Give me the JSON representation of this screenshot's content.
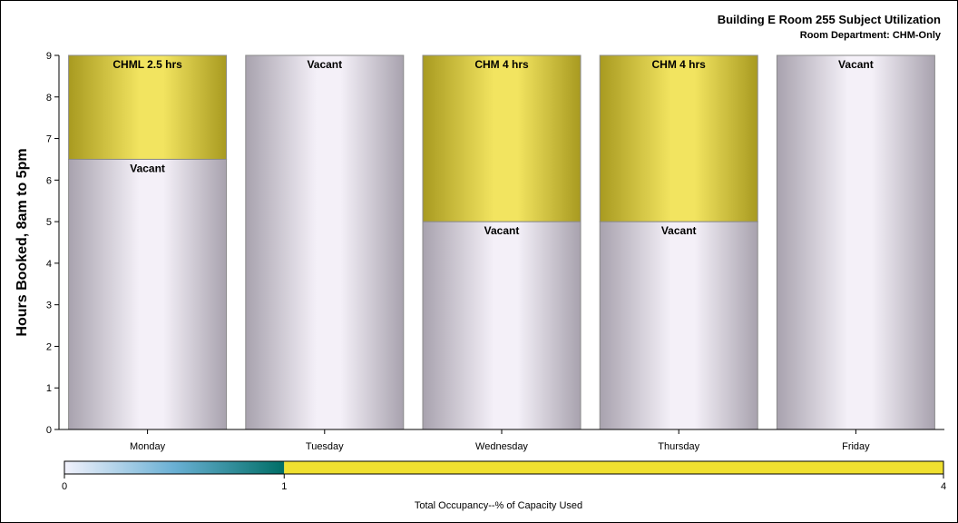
{
  "header": {
    "title": "Building E Room 255 Subject Utilization",
    "subtitle": "Room Department: CHM-Only"
  },
  "chart_data": {
    "type": "bar",
    "stacked": true,
    "ylabel": "Hours Booked, 8am to 5pm",
    "xlabel": "",
    "ylim": [
      0,
      9
    ],
    "yticks": [
      0,
      1,
      2,
      3,
      4,
      5,
      6,
      7,
      8,
      9
    ],
    "categories": [
      "Monday",
      "Tuesday",
      "Wednesday",
      "Thursday",
      "Friday"
    ],
    "bars": [
      {
        "category": "Monday",
        "segments": [
          {
            "label": "Vacant",
            "value": 6.5,
            "fill": "vacant"
          },
          {
            "label": "CHML 2.5 hrs",
            "value": 2.5,
            "fill": "booked"
          }
        ]
      },
      {
        "category": "Tuesday",
        "segments": [
          {
            "label": "Vacant",
            "value": 9,
            "fill": "vacant"
          }
        ]
      },
      {
        "category": "Wednesday",
        "segments": [
          {
            "label": "Vacant",
            "value": 5,
            "fill": "vacant"
          },
          {
            "label": "CHM 4 hrs",
            "value": 4,
            "fill": "booked"
          }
        ]
      },
      {
        "category": "Thursday",
        "segments": [
          {
            "label": "Vacant",
            "value": 5,
            "fill": "vacant"
          },
          {
            "label": "CHM 4 hrs",
            "value": 4,
            "fill": "booked"
          }
        ]
      },
      {
        "category": "Friday",
        "segments": [
          {
            "label": "Vacant",
            "value": 9,
            "fill": "vacant"
          }
        ]
      }
    ],
    "colors": {
      "vacant_center": "#f4f0f8",
      "vacant_edge": "#a8a2ae",
      "booked_center": "#f2e460",
      "booked_edge": "#a89a20",
      "outline": "#8a8a8a"
    },
    "legend": {
      "title": "Total Occupancy--% of Capacity Used",
      "min": 0,
      "max": 4,
      "ticks": [
        0,
        1,
        4
      ],
      "gradient_stops": [
        {
          "value": 0,
          "color": "#f2f2fc"
        },
        {
          "value": 0.5,
          "color": "#6ab0d4"
        },
        {
          "value": 1,
          "color": "#006e66"
        }
      ],
      "high_color": "#f0e030"
    }
  }
}
